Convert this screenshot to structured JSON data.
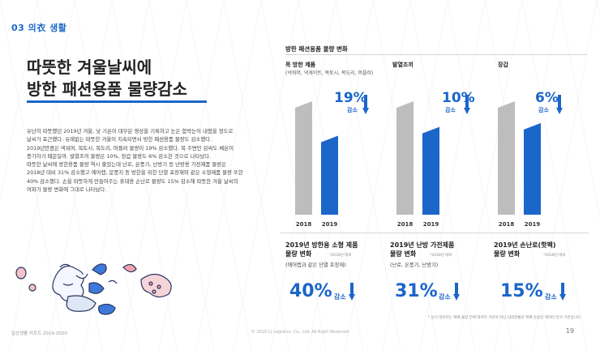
{
  "section": {
    "number": "03",
    "title_hanja": "의衣",
    "title_rest": "생활"
  },
  "headline": {
    "line1": "따뜻한 겨울날씨에",
    "line2": "방한 패션용품 물량감소"
  },
  "body": [
    "유난히 따뜻했던 2019년 겨울, 낮 기온이 대부분 영상을 기록하고 눈은 함박눈이 내렸을 정도로",
    "날씨가 포근했다. 유례없는 따뜻한 겨울이 지속되면서 방한 패션용품 물량도 감소했다.",
    "2019년만큼은 넥워머, 목토시, 목도리, 머플러 물량이 19% 감소했다. 목 주변만 감싸도 체온이",
    "증가하기 때문일까. 발열조끼 물량은 10%, 장갑 물량도 6% 감소한 것으로 나타났다.",
    "따뜻한 날씨에 방한용품 물량 역시 줄었는데 난로, 온풍기, 난방기 등 난방용 가전제품 물량은",
    "2018년 대비 31% 감소했고 에어캡, 문풍지 등 방한을 위한 단열 포장재와 같은 소형제품 물량 또한",
    "40% 감소했다. 손을 따뜻하게 만들어주는 휴대용 손난로 물량도 15% 감소해 따뜻한 겨울 날씨의",
    "여파가 물량 변화에 그대로 나타났다."
  ],
  "panel": {
    "title": "방한 패션용품 물량 변화"
  },
  "chart_data": [
    {
      "type": "bar",
      "title": "목 방한 제품",
      "subtitle": "(넥워머, 넥게이트, 목토시, 목도리, 머플러)",
      "categories": [
        "2018",
        "2019"
      ],
      "values": [
        100,
        81
      ],
      "change_pct": "19%",
      "change_word": "감소"
    },
    {
      "type": "bar",
      "title": "발열조끼",
      "subtitle": "",
      "categories": [
        "2018",
        "2019"
      ],
      "values": [
        100,
        90
      ],
      "change_pct": "10%",
      "change_word": "감소"
    },
    {
      "type": "bar",
      "title": "장갑",
      "subtitle": "",
      "categories": [
        "2018",
        "2019"
      ],
      "values": [
        100,
        94
      ],
      "change_pct": "6%",
      "change_word": "감소"
    }
  ],
  "bottom_stats": [
    {
      "title_line1": "2019년 방한용 소형 제품",
      "title_line2": "물량 변화",
      "note": "*2018년 대비",
      "sub": "(에어캡과 같은 단열 포장재)",
      "pct": "40%",
      "word": "감소"
    },
    {
      "title_line1": "2019년 난방 가전제품",
      "title_line2": "물량 변화",
      "note": "*2018년 대비",
      "sub": "(난로, 온풍기, 난방기)",
      "pct": "31%",
      "word": "감소"
    },
    {
      "title_line1": "2019년 손난로(핫팩)",
      "title_line2": "물량 변화",
      "note": "*2018년 대비",
      "sub": "",
      "pct": "15%",
      "word": "감소"
    }
  ],
  "footnote": "* 상기 데이터는 택배 물량 전체 데이터 기반이 아닌 CJ대한통운 택배 운송장 데이터 분석 기반입니다",
  "footer": {
    "left": "일상생활 리포트 2019-2020",
    "center": "© 2020 CJ Logistics. Co., Ltd. All Right Reserved",
    "page": "19"
  },
  "colors": {
    "accent": "#1b66c9",
    "bar2018": "#bdbdbd",
    "bar2019": "#1b66c9"
  }
}
